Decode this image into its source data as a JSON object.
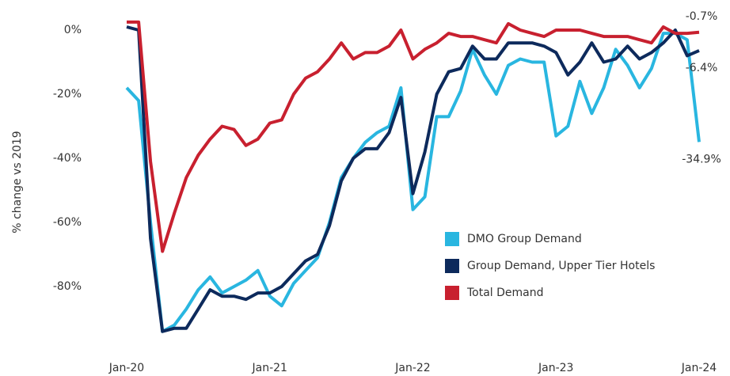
{
  "chart_data": {
    "type": "line",
    "y_label": "% change vs 2019",
    "categories": [
      "Jan-20",
      null,
      null,
      null,
      null,
      null,
      null,
      null,
      null,
      null,
      null,
      null,
      "Jan-21",
      null,
      null,
      null,
      null,
      null,
      null,
      null,
      null,
      null,
      null,
      null,
      "Jan-22",
      null,
      null,
      null,
      null,
      null,
      null,
      null,
      null,
      null,
      null,
      null,
      "Jan-23",
      null,
      null,
      null,
      null,
      null,
      null,
      null,
      null,
      null,
      null,
      null,
      "Jan-24"
    ],
    "series": [
      {
        "name": "DMO Group Demand",
        "color": "#29b6e0",
        "values": [
          -18,
          -22,
          -60,
          -94,
          -92,
          -87,
          -81,
          -77,
          -82,
          -80,
          -78,
          -75,
          -83,
          -86,
          -79,
          -75,
          -71,
          -60,
          -46,
          -40,
          -35,
          -32,
          -30,
          -18,
          -56,
          -52,
          -27,
          -27,
          -19,
          -6,
          -14,
          -20,
          -11,
          -9,
          -10,
          -10,
          -33,
          -30,
          -16,
          -26,
          -18,
          -6,
          -11,
          -18,
          -12,
          -1,
          -1,
          -3,
          -34.9
        ],
        "value_labels": [
          null,
          null,
          null,
          null,
          null,
          null,
          null,
          null,
          null,
          null,
          null,
          null,
          null,
          null,
          null,
          null,
          null,
          null,
          null,
          null,
          null,
          null,
          null,
          null,
          null,
          null,
          null,
          null,
          null,
          null,
          null,
          null,
          null,
          null,
          null,
          null,
          null,
          null,
          null,
          null,
          null,
          null,
          null,
          null,
          null,
          null,
          null,
          null,
          "-34.9%"
        ]
      },
      {
        "name": "Group Demand, Upper Tier Hotels",
        "color": "#0d2a5c",
        "values": [
          1,
          0,
          -65,
          -94,
          -93,
          -93,
          -87,
          -81,
          -83,
          -83,
          -84,
          -82,
          -82,
          -80,
          -76,
          -72,
          -70,
          -61,
          -47,
          -40,
          -37,
          -37,
          -32,
          -21,
          -51,
          -38,
          -20,
          -13,
          -12,
          -5,
          -9,
          -9,
          -4,
          -4,
          -4,
          -5,
          -7,
          -14,
          -10,
          -4,
          -10,
          -9,
          -5,
          -9,
          -7,
          -4,
          0,
          -8,
          -6.4
        ],
        "value_labels": [
          null,
          null,
          null,
          null,
          null,
          null,
          null,
          null,
          null,
          null,
          null,
          null,
          null,
          null,
          null,
          null,
          null,
          null,
          null,
          null,
          null,
          null,
          null,
          null,
          null,
          null,
          null,
          null,
          null,
          null,
          null,
          null,
          null,
          null,
          null,
          null,
          null,
          null,
          null,
          null,
          null,
          null,
          null,
          null,
          null,
          null,
          null,
          null,
          "-6.4%"
        ]
      },
      {
        "name": "Total Demand",
        "color": "#c8202f",
        "values": [
          2.5,
          2.5,
          -41,
          -69,
          -57,
          -46,
          -39,
          -34,
          -30,
          -31,
          -36,
          -34,
          -29,
          -28,
          -20,
          -15,
          -13,
          -9,
          -4,
          -9,
          -7,
          -7,
          -5,
          0,
          -9,
          -6,
          -4,
          -1,
          -2,
          -2,
          -3,
          -4,
          2,
          0,
          -1,
          -2,
          0,
          0,
          0,
          -1,
          -2,
          -2,
          -2,
          -3,
          -4,
          1,
          -1,
          -1,
          -0.7
        ],
        "value_labels": [
          null,
          null,
          null,
          null,
          null,
          null,
          null,
          null,
          null,
          null,
          null,
          null,
          null,
          null,
          null,
          null,
          null,
          null,
          null,
          null,
          null,
          null,
          null,
          null,
          null,
          null,
          null,
          null,
          null,
          null,
          null,
          null,
          null,
          null,
          null,
          null,
          null,
          null,
          null,
          null,
          null,
          null,
          null,
          null,
          null,
          null,
          null,
          null,
          "-0.7%"
        ]
      }
    ],
    "ylim": [
      -99,
      7
    ],
    "yticks": [
      {
        "value": 0,
        "label": "0%"
      },
      {
        "value": -20,
        "label": "-20%"
      },
      {
        "value": -40,
        "label": "-40%"
      },
      {
        "value": -60,
        "label": "-60%"
      },
      {
        "value": -80,
        "label": "-80%"
      }
    ],
    "grid": false,
    "legend": "lower right"
  }
}
